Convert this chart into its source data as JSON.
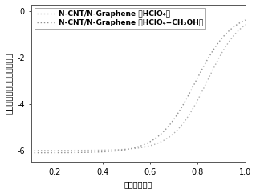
{
  "title": "",
  "xlabel": "电势（伏特）",
  "ylabel": "电流密度（毫安／平方厘米）",
  "xlim": [
    0.1,
    1.0
  ],
  "ylim": [
    -6.5,
    0.3
  ],
  "yticks": [
    0,
    -2,
    -4,
    -6
  ],
  "xticks": [
    0.2,
    0.4,
    0.6,
    0.8,
    1.0
  ],
  "legend1": "N-CNT/N-Graphene （HClO₄）",
  "legend2": "N-CNT/N-Graphene （HClO₄+CH₃OH）",
  "line_color1": "#b0b0b0",
  "line_color2": "#909090",
  "bg_color": "#ffffff",
  "curve1_x0": 0.84,
  "curve1_k": 14,
  "curve1_ymin": -6.0,
  "curve2_x0": 0.79,
  "curve2_k": 13,
  "curve2_ymin": -6.1,
  "font_size": 7,
  "legend_font_size": 6.5,
  "tick_font_size": 7
}
